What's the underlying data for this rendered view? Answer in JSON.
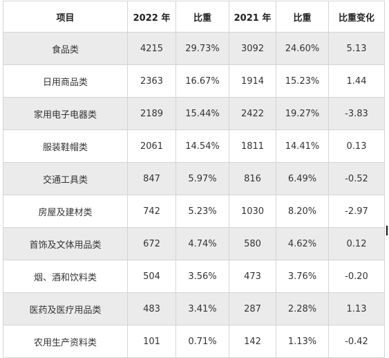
{
  "table": {
    "headers": [
      "项目",
      "2022 年",
      "比重",
      "2021 年",
      "比重",
      "比重变化"
    ],
    "rows": [
      [
        "食品类",
        "4215",
        "29.73%",
        "3092",
        "24.60%",
        "5.13"
      ],
      [
        "日用商品类",
        "2363",
        "16.67%",
        "1914",
        "15.23%",
        "1.44"
      ],
      [
        "家用电子电器类",
        "2189",
        "15.44%",
        "2422",
        "19.27%",
        "-3.83"
      ],
      [
        "服装鞋帽类",
        "2061",
        "14.54%",
        "1811",
        "14.41%",
        "0.13"
      ],
      [
        "交通工具类",
        "847",
        "5.97%",
        "816",
        "6.49%",
        "-0.52"
      ],
      [
        "房屋及建材类",
        "742",
        "5.23%",
        "1030",
        "8.20%",
        "-2.97"
      ],
      [
        "首饰及文体用品类",
        "672",
        "4.74%",
        "580",
        "4.62%",
        "0.12"
      ],
      [
        "烟、酒和饮料类",
        "504",
        "3.56%",
        "473",
        "3.76%",
        "-0.20"
      ],
      [
        "医药及医疗用品类",
        "483",
        "3.41%",
        "287",
        "2.28%",
        "1.13"
      ],
      [
        "农用生产资料类",
        "101",
        "0.71%",
        "142",
        "1.13%",
        "-0.42"
      ]
    ]
  }
}
